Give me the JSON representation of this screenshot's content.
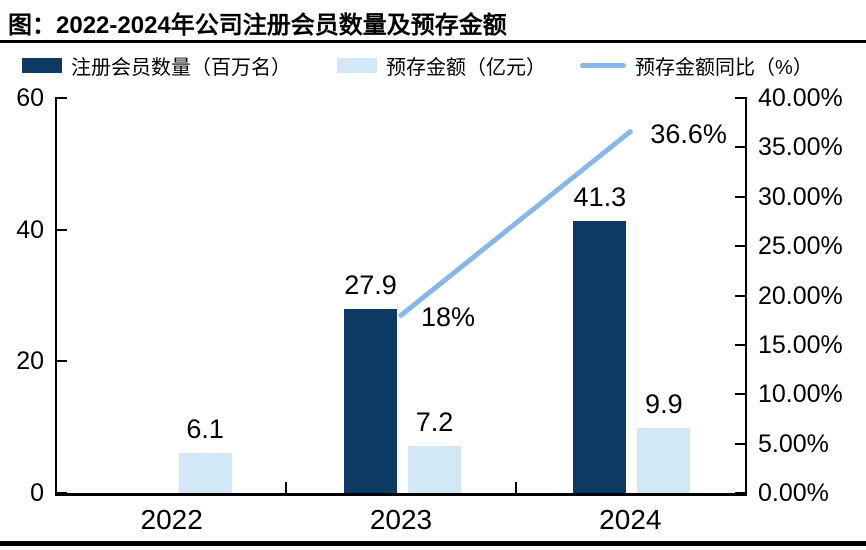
{
  "figure": {
    "title": "图：2022-2024年公司注册会员数量及预存金额"
  },
  "legend": {
    "items": [
      {
        "label": "注册会员数量（百万名）",
        "swatch": "square",
        "color": "#0C3A62"
      },
      {
        "label": "预存金额（亿元）",
        "swatch": "square",
        "color": "#D3E8F6"
      },
      {
        "label": "预存金额同比（%）",
        "swatch": "line",
        "color": "#85B8E8"
      }
    ]
  },
  "chart_data": {
    "type": "combo",
    "title": "图：2022-2024年公司注册会员数量及预存金额",
    "categories": [
      "2022",
      "2023",
      "2024"
    ],
    "series": [
      {
        "name": "注册会员数量（百万名）",
        "type": "bar",
        "axis": "left",
        "color": "#0C3A62",
        "values": [
          null,
          27.9,
          41.3
        ],
        "value_labels": [
          "",
          "27.9",
          "41.3"
        ]
      },
      {
        "name": "预存金额（亿元）",
        "type": "bar",
        "axis": "left",
        "color": "#D3E8F6",
        "values": [
          6.1,
          7.2,
          9.9
        ],
        "value_labels": [
          "6.1",
          "7.2",
          "9.9"
        ]
      },
      {
        "name": "预存金额同比（%）",
        "type": "line",
        "axis": "right",
        "color": "#85B8E8",
        "values": [
          null,
          18,
          36.6
        ],
        "value_labels": [
          "",
          "18%",
          "36.6%"
        ]
      }
    ],
    "left_axis": {
      "min": 0,
      "max": 60,
      "tick_values": [
        0,
        20,
        40,
        60
      ],
      "tick_labels": [
        "0",
        "20",
        "40",
        "60"
      ]
    },
    "right_axis": {
      "min": 0,
      "max": 40,
      "tick_values": [
        0,
        5,
        10,
        15,
        20,
        25,
        30,
        35,
        40
      ],
      "tick_labels": [
        "0.00%",
        "5.00%",
        "10.00%",
        "15.00%",
        "20.00%",
        "25.00%",
        "30.00%",
        "35.00%",
        "40.00%"
      ]
    },
    "grid": false,
    "legend_position": "top"
  }
}
